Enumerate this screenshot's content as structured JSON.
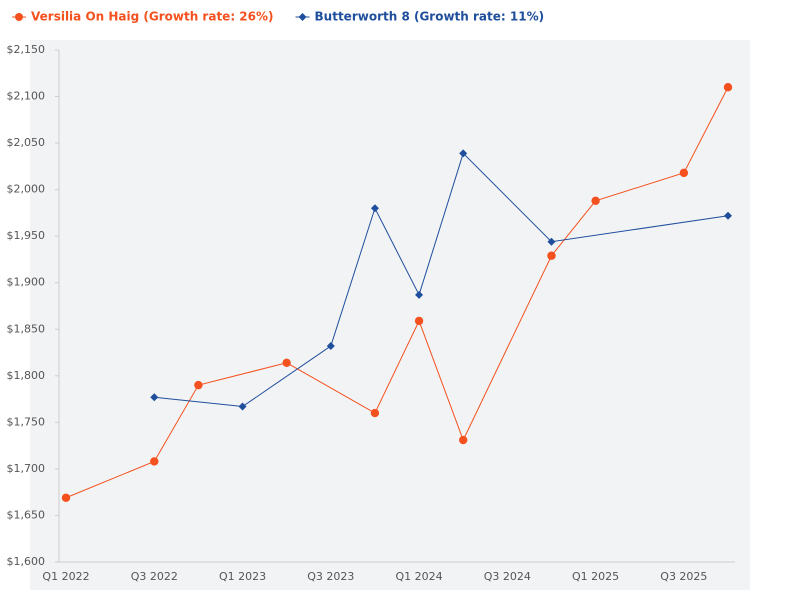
{
  "chart_data": {
    "type": "line",
    "categories": [
      "Q1 2022",
      null,
      "Q3 2022",
      null,
      "Q1 2023",
      null,
      "Q3 2023",
      null,
      "Q1 2024",
      null,
      "Q3 2024",
      null,
      "Q1 2025",
      null,
      "Q3 2025",
      null
    ],
    "series": [
      {
        "name": "Versilia On Haig (Growth rate: 26%)",
        "color": "#f4511e",
        "marker": "circle",
        "values": [
          1669,
          null,
          1708,
          1790,
          null,
          1814,
          null,
          1760,
          1859,
          1731,
          null,
          1929,
          1988,
          null,
          2018,
          2110
        ]
      },
      {
        "name": "Butterworth 8 (Growth rate: 11%)",
        "color": "#1f4e9c",
        "marker": "diamond",
        "values": [
          null,
          null,
          1777,
          null,
          1767,
          null,
          1832,
          1980,
          1887,
          2039,
          null,
          1944,
          null,
          null,
          null,
          1972
        ]
      }
    ],
    "ylim": [
      1600,
      2150
    ],
    "yticks": [
      {
        "value": 1600,
        "label": "$1,600"
      },
      {
        "value": 1650,
        "label": "$1,650"
      },
      {
        "value": 1700,
        "label": "$1,700"
      },
      {
        "value": 1750,
        "label": "$1,750"
      },
      {
        "value": 1800,
        "label": "$1,800"
      },
      {
        "value": 1850,
        "label": "$1,850"
      },
      {
        "value": 1900,
        "label": "$1,900"
      },
      {
        "value": 1950,
        "label": "$1,950"
      },
      {
        "value": 2000,
        "label": "$2,000"
      },
      {
        "value": 2050,
        "label": "$2,050"
      },
      {
        "value": 2100,
        "label": "$2,100"
      },
      {
        "value": 2150,
        "label": "$2,150"
      }
    ],
    "grid": false,
    "connect_gaps": true,
    "legend": "top"
  }
}
